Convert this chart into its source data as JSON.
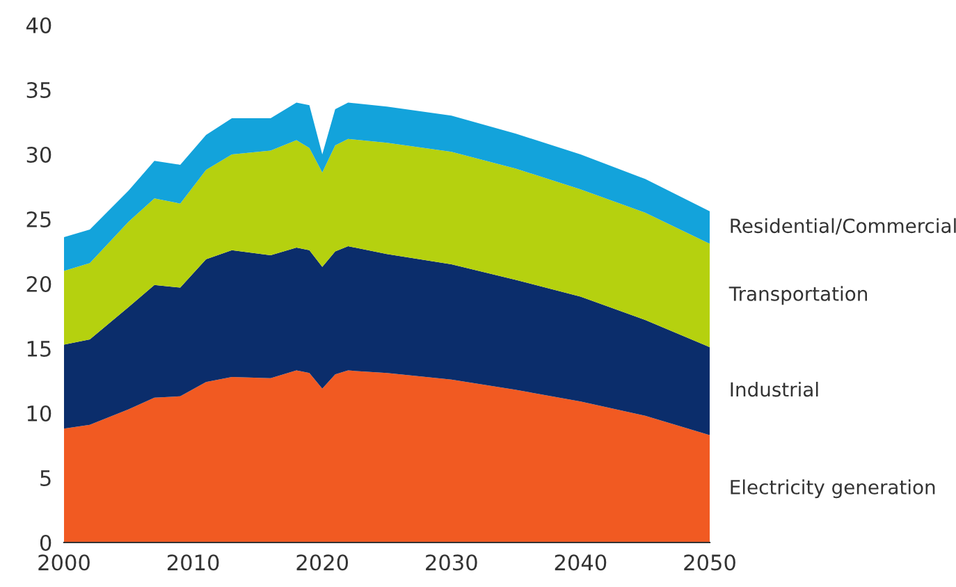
{
  "chart_data": {
    "type": "area",
    "stacked": true,
    "x": [
      2000,
      2002,
      2005,
      2007,
      2009,
      2011,
      2013,
      2016,
      2018,
      2019,
      2020,
      2021,
      2022,
      2025,
      2030,
      2035,
      2040,
      2045,
      2050
    ],
    "series": [
      {
        "name": "Electricity generation",
        "color": "#f15a22",
        "values": [
          8.8,
          9.1,
          10.3,
          11.2,
          11.3,
          12.4,
          12.8,
          12.7,
          13.3,
          13.1,
          11.9,
          13.0,
          13.3,
          13.1,
          12.6,
          11.8,
          10.9,
          9.8,
          8.3
        ]
      },
      {
        "name": "Industrial",
        "color": "#0b2d6b",
        "values": [
          6.5,
          6.6,
          7.9,
          8.7,
          8.4,
          9.5,
          9.8,
          9.5,
          9.5,
          9.5,
          9.4,
          9.5,
          9.6,
          9.2,
          8.9,
          8.5,
          8.1,
          7.4,
          6.8
        ]
      },
      {
        "name": "Transportation",
        "color": "#b5d10f",
        "values": [
          5.7,
          5.9,
          6.6,
          6.7,
          6.5,
          6.9,
          7.4,
          8.1,
          8.3,
          7.9,
          7.3,
          8.2,
          8.3,
          8.6,
          8.7,
          8.6,
          8.3,
          8.3,
          8.0
        ]
      },
      {
        "name": "Residential/Commercial",
        "color": "#13a3db",
        "values": [
          2.6,
          2.6,
          2.4,
          2.9,
          3.0,
          2.7,
          2.8,
          2.5,
          2.9,
          3.3,
          1.4,
          2.8,
          2.8,
          2.8,
          2.8,
          2.7,
          2.7,
          2.6,
          2.5
        ]
      }
    ],
    "xlim": [
      2000,
      2050
    ],
    "xticks": [
      2000,
      2010,
      2020,
      2030,
      2040,
      2050
    ],
    "ylim": [
      0,
      40
    ],
    "yticks": [
      0,
      5,
      10,
      15,
      20,
      25,
      30,
      35,
      40
    ],
    "grid": false,
    "legend": false
  }
}
